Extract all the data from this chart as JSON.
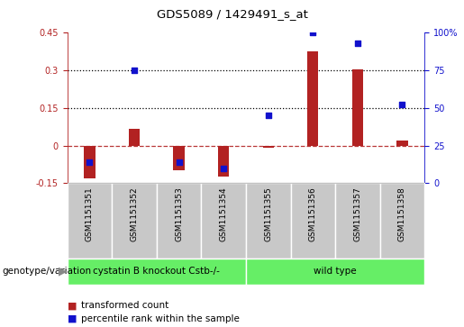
{
  "title": "GDS5089 / 1429491_s_at",
  "samples": [
    "GSM1151351",
    "GSM1151352",
    "GSM1151353",
    "GSM1151354",
    "GSM1151355",
    "GSM1151356",
    "GSM1151357",
    "GSM1151358"
  ],
  "transformed_count": [
    -0.13,
    0.065,
    -0.1,
    -0.125,
    -0.01,
    0.375,
    0.305,
    0.02
  ],
  "percentile_rank": [
    14,
    75,
    14,
    10,
    45,
    100,
    93,
    52
  ],
  "ylim_left": [
    -0.15,
    0.45
  ],
  "ylim_right": [
    0,
    100
  ],
  "yticks_left": [
    -0.15,
    0.0,
    0.15,
    0.3,
    0.45
  ],
  "yticks_right": [
    0,
    25,
    50,
    75,
    100
  ],
  "hlines": [
    0.15,
    0.3
  ],
  "zero_line": 0.0,
  "bar_color": "#b22222",
  "dot_color": "#1111cc",
  "group1_label": "cystatin B knockout Cstb-/-",
  "group1_count": 4,
  "group2_label": "wild type",
  "group2_count": 4,
  "group_color": "#66ee66",
  "genotype_label": "genotype/variation",
  "legend_bar": "transformed count",
  "legend_dot": "percentile rank within the sample",
  "bar_width": 0.25,
  "sample_bg_color": "#c8c8c8",
  "plot_bg_color": "#ffffff",
  "fig_bg_color": "#ffffff",
  "border_color": "#aaaaaa"
}
